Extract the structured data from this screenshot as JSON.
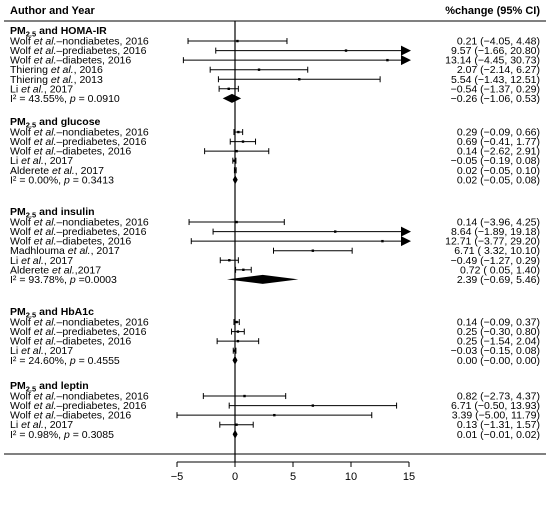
{
  "header": {
    "left_title": "Author and Year",
    "right_title": "%change (95% CI)"
  },
  "colors": {
    "ink": "#000000",
    "background": "#ffffff"
  },
  "chart_data": {
    "type": "forest",
    "xlim": [
      -5,
      15
    ],
    "xticks": [
      -5,
      0,
      5,
      10,
      15
    ],
    "null_line": 0,
    "groups": [
      {
        "title": "PM2.5 and HOMA-IR",
        "studies": [
          {
            "author": "Wolf",
            "suffix": " et al.",
            "detail": "–nondiabetes, 2016",
            "est": 0.21,
            "lo": -4.05,
            "hi": 4.48,
            "ci": "0.21 (−4.05,  4.48)"
          },
          {
            "author": "Wolf",
            "suffix": " et al.",
            "detail": "–prediabetes, 2016",
            "est": 9.57,
            "lo": -1.66,
            "hi": 20.8,
            "ci": "9.57 (−1.66, 20.80)"
          },
          {
            "author": "Wolf",
            "suffix": " et al.",
            "detail": "–diabetes, 2016",
            "est": 13.14,
            "lo": -4.45,
            "hi": 30.73,
            "ci": "13.14 (−4.45, 30.73)"
          },
          {
            "author": "Thiering",
            "suffix": " et al.",
            "detail": ", 2016",
            "est": 2.07,
            "lo": -2.14,
            "hi": 6.27,
            "ci": "2.07 (−2.14,  6.27)"
          },
          {
            "author": "Thiering",
            "suffix": " et al.",
            "detail": ", 2013",
            "est": 5.54,
            "lo": -1.43,
            "hi": 12.51,
            "ci": "5.54 (−1.43, 12.51)"
          },
          {
            "author": "Li",
            "suffix": " et al.",
            "detail": ", 2017",
            "est": -0.54,
            "lo": -1.37,
            "hi": 0.29,
            "ci": "−0.54 (−1.37,  0.29)"
          }
        ],
        "summary": {
          "label": "I² = 43.55%, ",
          "p": "p",
          "pval": " = 0.0910",
          "est": -0.26,
          "lo": -1.06,
          "hi": 0.53,
          "ci": "−0.26 (−1.06,  0.53)"
        }
      },
      {
        "title": "PM2.5 and glucose",
        "studies": [
          {
            "author": "Wolf",
            "suffix": " et al.",
            "detail": "–nondiabetes, 2016",
            "est": 0.29,
            "lo": -0.09,
            "hi": 0.66,
            "ci": "0.29 (−0.09,  0.66)"
          },
          {
            "author": "Wolf",
            "suffix": " et al.",
            "detail": "–prediabetes, 2016",
            "est": 0.69,
            "lo": -0.41,
            "hi": 1.77,
            "ci": "0.69 (−0.41,  1.77)"
          },
          {
            "author": "Wolf",
            "suffix": " et al.",
            "detail": "–diabetes, 2016",
            "est": 0.14,
            "lo": -2.62,
            "hi": 2.91,
            "ci": "0.14 (−2.62,  2.91)"
          },
          {
            "author": "Li",
            "suffix": " et al.",
            "detail": ", 2017",
            "est": -0.05,
            "lo": -0.19,
            "hi": 0.08,
            "ci": "−0.05 (−0.19,  0.08)"
          },
          {
            "author": "Alderete",
            "suffix": " et al.",
            "detail": ", 2017",
            "est": 0.02,
            "lo": -0.05,
            "hi": 0.1,
            "ci": "0.02 (−0.05,  0.10)"
          }
        ],
        "summary": {
          "label": "I² = 0.00%, ",
          "p": "p",
          "pval": " = 0.3413",
          "est": 0.02,
          "lo": -0.05,
          "hi": 0.08,
          "ci": "0.02 (−0.05,  0.08)"
        }
      },
      {
        "title": "PM2.5 and insulin",
        "studies": [
          {
            "author": "Wolf",
            "suffix": " et al.",
            "detail": "–nondiabetes, 2016",
            "est": 0.14,
            "lo": -3.96,
            "hi": 4.25,
            "ci": "0.14 (−3.96,  4.25)"
          },
          {
            "author": "Wolf",
            "suffix": " et al.",
            "detail": "–prediabetes, 2016",
            "est": 8.64,
            "lo": -1.89,
            "hi": 19.18,
            "ci": "8.64 (−1.89, 19.18)"
          },
          {
            "author": "Wolf",
            "suffix": " et al.",
            "detail": "–diabetes, 2016",
            "est": 12.71,
            "lo": -3.77,
            "hi": 29.2,
            "ci": "12.71 (−3.77, 29.20)"
          },
          {
            "author": "Madhlouma",
            "suffix": " et al.",
            "detail": ", 2017",
            "est": 6.71,
            "lo": 3.32,
            "hi": 10.1,
            "ci": "6.71 ( 3.32, 10.10)"
          },
          {
            "author": "Li",
            "suffix": " et al.",
            "detail": ", 2017",
            "est": -0.49,
            "lo": -1.27,
            "hi": 0.29,
            "ci": "−0.49 (−1.27,  0.29)"
          },
          {
            "author": "Alderete",
            "suffix": " et al.",
            "detail": ",2017",
            "est": 0.72,
            "lo": 0.05,
            "hi": 1.4,
            "ci": "0.72 ( 0.05,  1.40)"
          }
        ],
        "summary": {
          "label": "I² = 93.78%, ",
          "p": "p",
          "pval": " =0.0003",
          "est": 2.39,
          "lo": -0.69,
          "hi": 5.46,
          "ci": "2.39 (−0.69,  5.46)"
        }
      },
      {
        "title": "PM2.5 and HbA1c",
        "studies": [
          {
            "author": "Wolf",
            "suffix": " et al.",
            "detail": "–nondiabetes, 2016",
            "est": 0.14,
            "lo": -0.09,
            "hi": 0.37,
            "ci": "0.14 (−0.09,  0.37)"
          },
          {
            "author": "Wolf",
            "suffix": " et al.",
            "detail": "–prediabetes, 2016",
            "est": 0.25,
            "lo": -0.3,
            "hi": 0.8,
            "ci": "0.25 (−0.30,  0.80)"
          },
          {
            "author": "Wolf",
            "suffix": " et al.",
            "detail": "–diabetes, 2016",
            "est": 0.25,
            "lo": -1.54,
            "hi": 2.04,
            "ci": "0.25 (−1.54,  2.04)"
          },
          {
            "author": "Li",
            "suffix": " et al.",
            "detail": ", 2017",
            "est": -0.03,
            "lo": -0.15,
            "hi": 0.08,
            "ci": "−0.03 (−0.15,  0.08)"
          }
        ],
        "summary": {
          "label": "I² = 24.60%, ",
          "p": "p",
          "pval": " = 0.4555",
          "est": 0.0,
          "lo": -0.0,
          "hi": 0.0,
          "ci": "0.00 (−0.00,  0.00)"
        }
      },
      {
        "title": "PM2.5 and leptin",
        "studies": [
          {
            "author": "Wolf",
            "suffix": " et al.",
            "detail": "–nondiabetes, 2016",
            "est": 0.82,
            "lo": -2.73,
            "hi": 4.37,
            "ci": "0.82 (−2.73,  4.37)"
          },
          {
            "author": "Wolf",
            "suffix": " et al.",
            "detail": "–prediabetes, 2016",
            "est": 6.71,
            "lo": -0.5,
            "hi": 13.93,
            "ci": "6.71 (−0.50, 13.93)"
          },
          {
            "author": "Wolf",
            "suffix": " et al.",
            "detail": "–diabetes, 2016",
            "est": 3.39,
            "lo": -5.0,
            "hi": 11.79,
            "ci": "3.39 (−5.00, 11.79)"
          },
          {
            "author": "Li",
            "suffix": " et al.",
            "detail": ", 2017",
            "est": 0.13,
            "lo": -1.31,
            "hi": 1.57,
            "ci": "0.13 (−1.31,  1.57)"
          }
        ],
        "summary": {
          "label": "I² = 0.98%, ",
          "p": "p",
          "pval": " = 0.3085",
          "est": 0.01,
          "lo": -0.01,
          "hi": 0.02,
          "ci": "0.01 (−0.01,  0.02)"
        }
      }
    ]
  }
}
